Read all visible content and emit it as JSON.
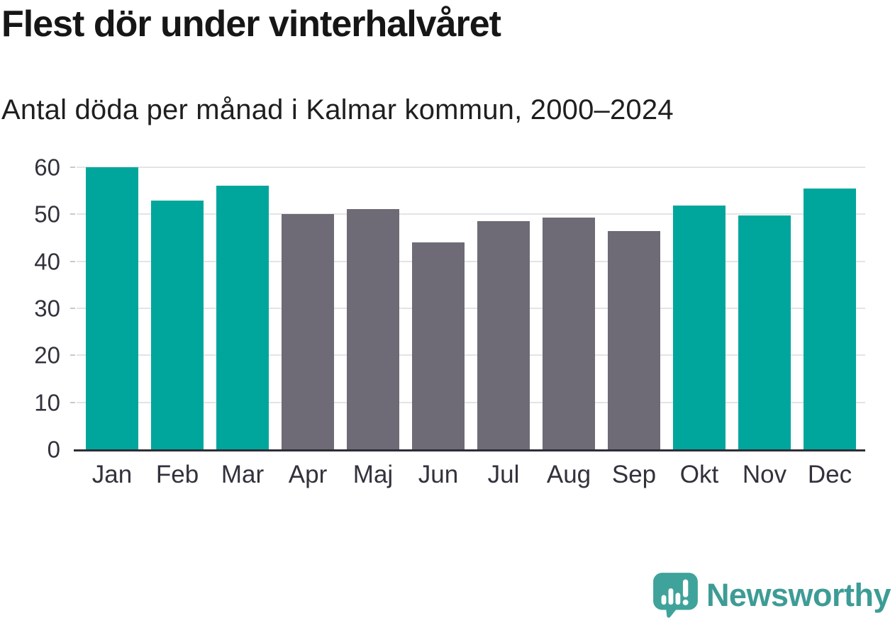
{
  "header": {
    "title": "Flest dör under vinterhalvåret",
    "subtitle": "Antal döda per månad i Kalmar kommun, 2000–2024"
  },
  "chart_data": {
    "type": "bar",
    "title": "Flest dör under vinterhalvåret",
    "subtitle": "Antal döda per månad i Kalmar kommun, 2000–2024",
    "categories": [
      "Jan",
      "Feb",
      "Mar",
      "Apr",
      "Maj",
      "Jun",
      "Jul",
      "Aug",
      "Sep",
      "Okt",
      "Nov",
      "Dec"
    ],
    "values": [
      60.0,
      52.9,
      56.1,
      50.0,
      51.1,
      44.0,
      48.6,
      49.3,
      46.4,
      51.8,
      49.8,
      55.5
    ],
    "bar_groups": [
      "winter",
      "winter",
      "winter",
      "summer",
      "summer",
      "summer",
      "summer",
      "summer",
      "summer",
      "winter",
      "winter",
      "winter"
    ],
    "xlabel": "",
    "ylabel": "",
    "ylim": [
      0,
      60
    ],
    "yticks": [
      0,
      10,
      20,
      30,
      40,
      50,
      60
    ],
    "grid": true,
    "legend": "none",
    "colors": {
      "winter": "#00a69c",
      "summer": "#6e6b76",
      "gridline": "#e4e4e6",
      "axis": "#2e2d36",
      "tick_label": "#33323c"
    }
  },
  "footer": {
    "brand": "Newsworthy",
    "brand_color": "#3d9c95",
    "icon": "newsworthy-speech-bubble-bar-chart-icon"
  }
}
